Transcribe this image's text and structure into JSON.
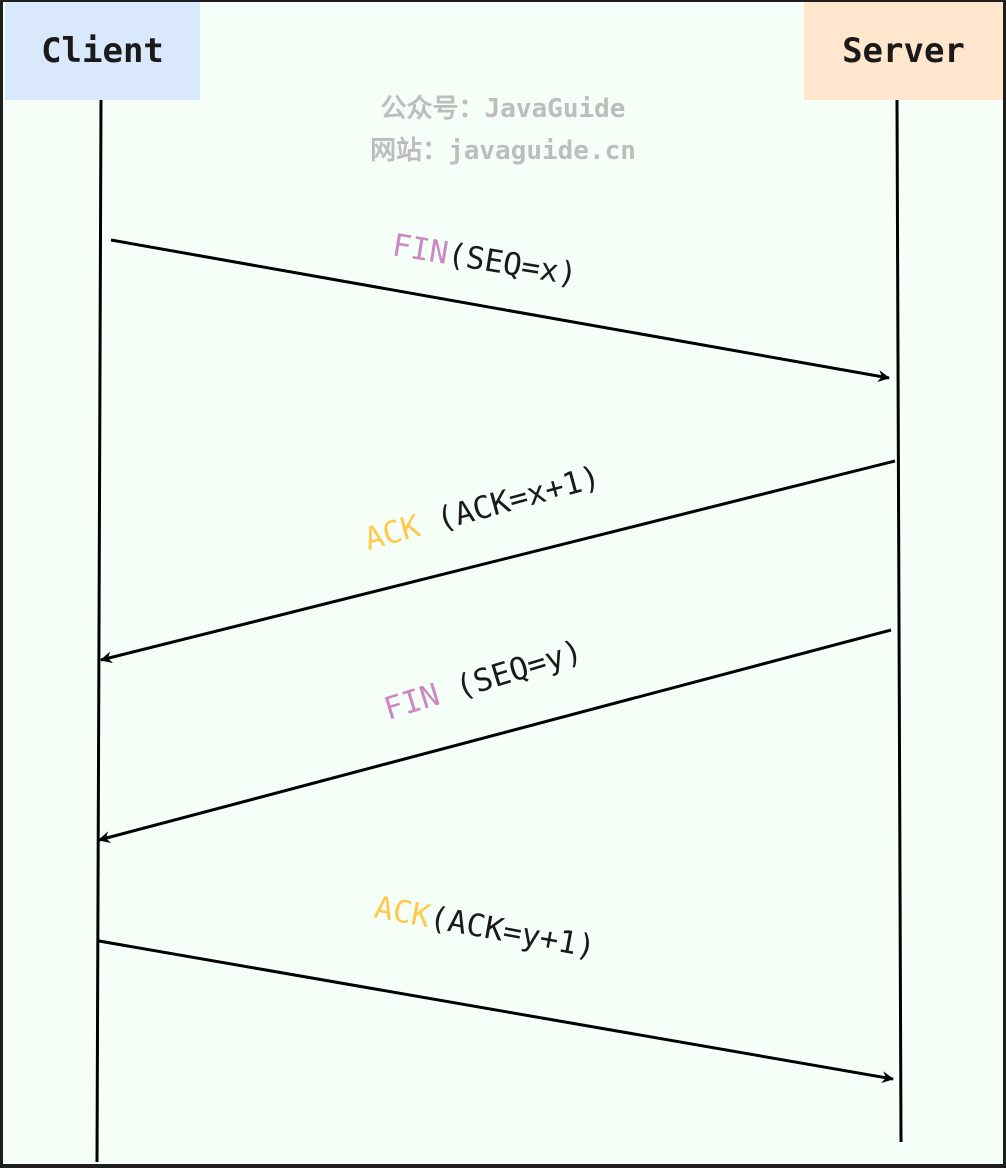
{
  "actors": {
    "client": {
      "label": "Client",
      "color": "#dae8fc"
    },
    "server": {
      "label": "Server",
      "color": "#ffe6cc"
    }
  },
  "watermark": {
    "line1": "公众号：JavaGuide",
    "line2": "网站：javaguide.cn"
  },
  "colors": {
    "background": "#f5fff7",
    "line": "#000000",
    "fin": "#cc88c4",
    "ack": "#ffc94d",
    "text": "#1a1a1a"
  },
  "messages": [
    {
      "flag": "FIN",
      "detail": "(SEQ=x)",
      "from": "client",
      "to": "server",
      "flag_color": "fin"
    },
    {
      "flag": "ACK",
      "detail": " (ACK=x+1)",
      "from": "server",
      "to": "client",
      "flag_color": "ack"
    },
    {
      "flag": "FIN",
      "detail": " (SEQ=y)",
      "from": "server",
      "to": "client",
      "flag_color": "fin"
    },
    {
      "flag": "ACK",
      "detail": "(ACK=y+1)",
      "from": "client",
      "to": "server",
      "flag_color": "ack"
    }
  ]
}
